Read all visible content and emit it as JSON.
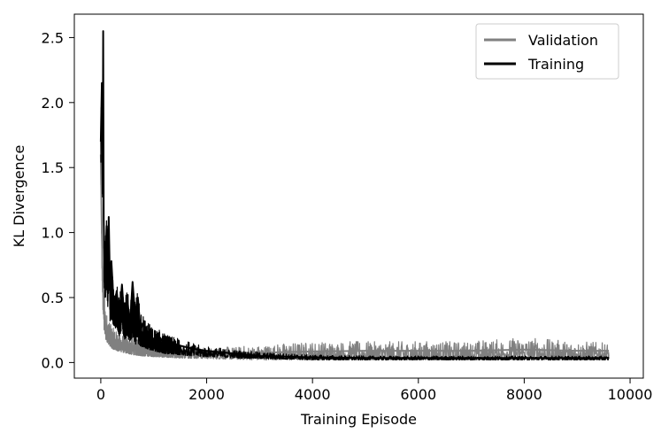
{
  "chart_data": {
    "type": "line",
    "title": "",
    "xlabel": "Training Episode",
    "ylabel": "KL Divergence",
    "xlim": [
      -500,
      10250
    ],
    "ylim": [
      -0.12,
      2.68
    ],
    "x_ticks": [
      0,
      2000,
      4000,
      6000,
      8000,
      10000
    ],
    "x_tick_labels": [
      "0",
      "2000",
      "4000",
      "6000",
      "8000",
      "10000"
    ],
    "y_ticks": [
      0.0,
      0.5,
      1.0,
      1.5,
      2.0,
      2.5
    ],
    "y_tick_labels": [
      "0.0",
      "0.5",
      "1.0",
      "1.5",
      "2.0",
      "2.5"
    ],
    "grid": false,
    "legend": "top-right",
    "series": [
      {
        "name": "Validation",
        "color": "#808080",
        "x": [
          0,
          20,
          40,
          60,
          80,
          100,
          150,
          200,
          250,
          300,
          400,
          500,
          600,
          700,
          800,
          1000,
          1200,
          1500,
          2000,
          2500,
          3000,
          3500,
          4000,
          5000,
          6000,
          7000,
          8000,
          9000,
          9600
        ],
        "y": [
          1.6,
          1.0,
          0.6,
          0.4,
          0.32,
          0.28,
          0.24,
          0.2,
          0.18,
          0.17,
          0.15,
          0.14,
          0.13,
          0.12,
          0.11,
          0.1,
          0.09,
          0.08,
          0.07,
          0.07,
          0.075,
          0.08,
          0.085,
          0.09,
          0.09,
          0.09,
          0.1,
          0.09,
          0.09
        ],
        "band_low": [
          1.4,
          0.7,
          0.4,
          0.25,
          0.2,
          0.17,
          0.14,
          0.11,
          0.1,
          0.09,
          0.08,
          0.07,
          0.06,
          0.055,
          0.05,
          0.045,
          0.04,
          0.035,
          0.03,
          0.025,
          0.02,
          0.02,
          0.02,
          0.02,
          0.02,
          0.02,
          0.02,
          0.02,
          0.02
        ],
        "band_high": [
          1.7,
          1.1,
          0.75,
          0.55,
          0.45,
          0.4,
          0.33,
          0.28,
          0.26,
          0.24,
          0.22,
          0.2,
          0.19,
          0.17,
          0.16,
          0.15,
          0.13,
          0.12,
          0.11,
          0.12,
          0.13,
          0.15,
          0.16,
          0.16,
          0.16,
          0.16,
          0.19,
          0.16,
          0.15
        ]
      },
      {
        "name": "Training",
        "color": "#000000",
        "x": [
          0,
          20,
          35,
          45,
          55,
          70,
          90,
          110,
          130,
          150,
          175,
          200,
          250,
          300,
          350,
          400,
          450,
          500,
          550,
          600,
          650,
          700,
          750,
          800,
          900,
          1000,
          1100,
          1200,
          1300,
          1500,
          1700,
          2000,
          2500,
          3000,
          3500,
          4000,
          5000,
          6000,
          7000,
          8000,
          9000,
          9600
        ],
        "y": [
          1.7,
          2.15,
          1.3,
          2.55,
          1.1,
          0.75,
          0.8,
          1.05,
          0.7,
          1.12,
          0.55,
          0.78,
          0.4,
          0.55,
          0.35,
          0.6,
          0.3,
          0.5,
          0.28,
          0.62,
          0.35,
          0.5,
          0.25,
          0.3,
          0.22,
          0.18,
          0.2,
          0.15,
          0.14,
          0.13,
          0.11,
          0.09,
          0.07,
          0.05,
          0.045,
          0.04,
          0.035,
          0.035,
          0.035,
          0.035,
          0.035,
          0.035
        ],
        "band_low": [
          1.5,
          1.8,
          1.0,
          2.1,
          0.7,
          0.5,
          0.5,
          0.6,
          0.4,
          0.6,
          0.3,
          0.35,
          0.25,
          0.28,
          0.2,
          0.25,
          0.18,
          0.2,
          0.15,
          0.2,
          0.14,
          0.15,
          0.12,
          0.12,
          0.1,
          0.09,
          0.08,
          0.07,
          0.065,
          0.06,
          0.05,
          0.045,
          0.035,
          0.03,
          0.025,
          0.02,
          0.02,
          0.02,
          0.02,
          0.02,
          0.02,
          0.02
        ],
        "band_high": [
          1.8,
          2.2,
          1.5,
          2.55,
          1.3,
          0.9,
          1.0,
          1.1,
          0.9,
          1.12,
          0.7,
          0.8,
          0.55,
          0.6,
          0.5,
          0.62,
          0.45,
          0.58,
          0.4,
          0.62,
          0.45,
          0.55,
          0.36,
          0.38,
          0.3,
          0.26,
          0.25,
          0.22,
          0.2,
          0.18,
          0.15,
          0.12,
          0.1,
          0.08,
          0.07,
          0.06,
          0.05,
          0.05,
          0.05,
          0.05,
          0.05,
          0.05
        ]
      }
    ]
  }
}
